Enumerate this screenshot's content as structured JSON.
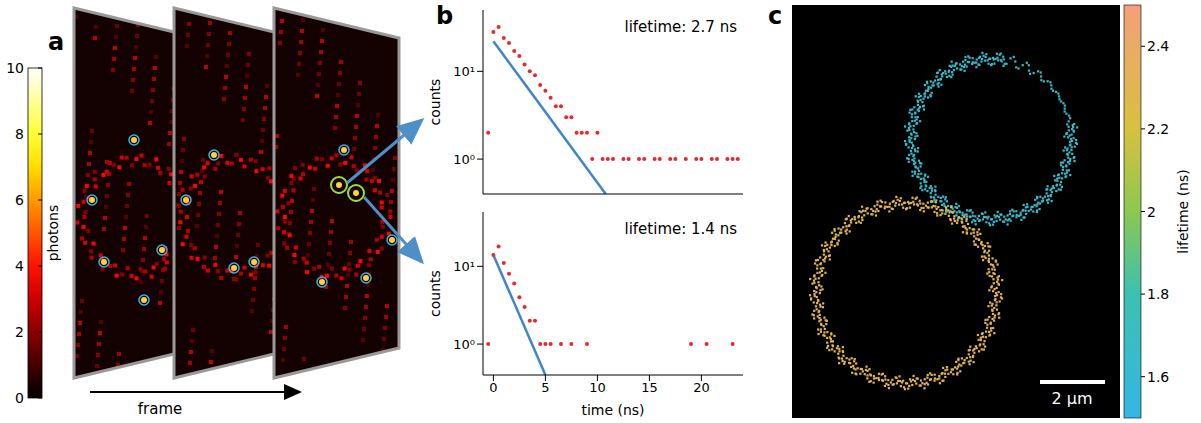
{
  "panel_labels": [
    "a",
    "b",
    "c"
  ],
  "panel_a": {
    "frames": 3,
    "x_label": "frame",
    "colorbar": {
      "label": "photons",
      "range": [
        0,
        10
      ],
      "ticks": [
        0,
        2,
        4,
        6,
        8,
        10
      ]
    }
  },
  "chart_data": [
    {
      "type": "scatter",
      "annotation": "lifetime: 2.7 ns",
      "y_label": "counts",
      "xlim": [
        -1,
        24
      ],
      "xticks": [
        0,
        5,
        10,
        15,
        20
      ],
      "ylim": [
        0.4,
        50
      ],
      "yticks": [
        {
          "value": 1,
          "label": "10⁰"
        },
        {
          "value": 10,
          "label": "10¹"
        }
      ],
      "log": "y",
      "tick_labels": "y",
      "series": [
        {
          "type": "scatter",
          "color": "#e8282b",
          "marker": "circle",
          "x": [
            -0.5,
            0,
            0.5,
            1,
            1.5,
            2,
            2.5,
            3,
            3.5,
            4,
            4.5,
            5,
            5.5,
            6,
            6.5,
            7,
            7.5,
            8,
            8.5,
            9,
            9.5,
            10,
            10.5,
            11,
            11.5,
            12,
            12.5,
            13,
            13.5,
            14,
            14.5,
            15,
            15.5,
            16,
            16.5,
            17,
            17.5,
            18,
            18.5,
            19,
            19.5,
            20,
            20.5,
            21,
            21.5,
            22,
            22.5,
            23,
            23.5
          ],
          "values": [
            2,
            28,
            32,
            24,
            21,
            17,
            15,
            12,
            10,
            9,
            7,
            6,
            5,
            4,
            4,
            3,
            3,
            2,
            2,
            2,
            1,
            2,
            1,
            1,
            1,
            null,
            1,
            1,
            null,
            1,
            1,
            null,
            1,
            1,
            null,
            1,
            1,
            null,
            1,
            null,
            1,
            1,
            null,
            1,
            1,
            null,
            1,
            1,
            1
          ]
        },
        {
          "type": "line",
          "color": "#3f86c4",
          "line_style": "solid",
          "x": [
            0,
            10.8
          ],
          "values": [
            22,
            0.4
          ]
        }
      ]
    },
    {
      "type": "scatter",
      "annotation": "lifetime: 1.4 ns",
      "y_label": "counts",
      "x_label": "time (ns)",
      "xlim": [
        -1,
        24
      ],
      "xticks": [
        0,
        5,
        10,
        15,
        20
      ],
      "ylim": [
        0.4,
        50
      ],
      "yticks": [
        {
          "value": 1,
          "label": "10⁰"
        },
        {
          "value": 10,
          "label": "10¹"
        }
      ],
      "log": "y",
      "series": [
        {
          "type": "scatter",
          "color": "#e8282b",
          "marker": "circle",
          "x": [
            -0.5,
            0,
            0.5,
            1,
            1.5,
            2,
            2.5,
            3,
            3.5,
            4,
            4.5,
            5,
            5.5,
            6,
            6.5,
            7,
            7.5,
            8,
            8.5,
            9,
            9.5,
            10,
            10.5,
            11,
            11.5,
            12,
            12.5,
            13,
            13.5,
            14,
            14.5,
            15,
            15.5,
            16,
            16.5,
            17,
            17.5,
            18,
            18.5,
            19,
            19.5,
            20,
            20.5,
            21,
            21.5,
            22,
            22.5,
            23,
            23.5
          ],
          "values": [
            1,
            14,
            18,
            11,
            8,
            6,
            4,
            3,
            2,
            2,
            1,
            1,
            1,
            null,
            1,
            null,
            1,
            null,
            null,
            1,
            null,
            null,
            null,
            null,
            null,
            null,
            null,
            null,
            null,
            null,
            null,
            null,
            null,
            null,
            null,
            null,
            null,
            null,
            null,
            1,
            null,
            null,
            1,
            null,
            null,
            null,
            null,
            1,
            null
          ]
        },
        {
          "type": "line",
          "color": "#3f86c4",
          "line_style": "solid",
          "x": [
            0,
            5.0
          ],
          "values": [
            14,
            0.4
          ]
        }
      ]
    }
  ],
  "panel_c": {
    "colorbar": {
      "label": "lifetime (ns)",
      "range": [
        1.5,
        2.5
      ],
      "ticks": [
        1.6,
        1.8,
        2,
        2.2,
        2.4
      ]
    },
    "scale_bar": "2 µm",
    "rings": [
      {
        "mean_lifetime": 1.65
      },
      {
        "mean_lifetime": 2.3
      }
    ]
  }
}
